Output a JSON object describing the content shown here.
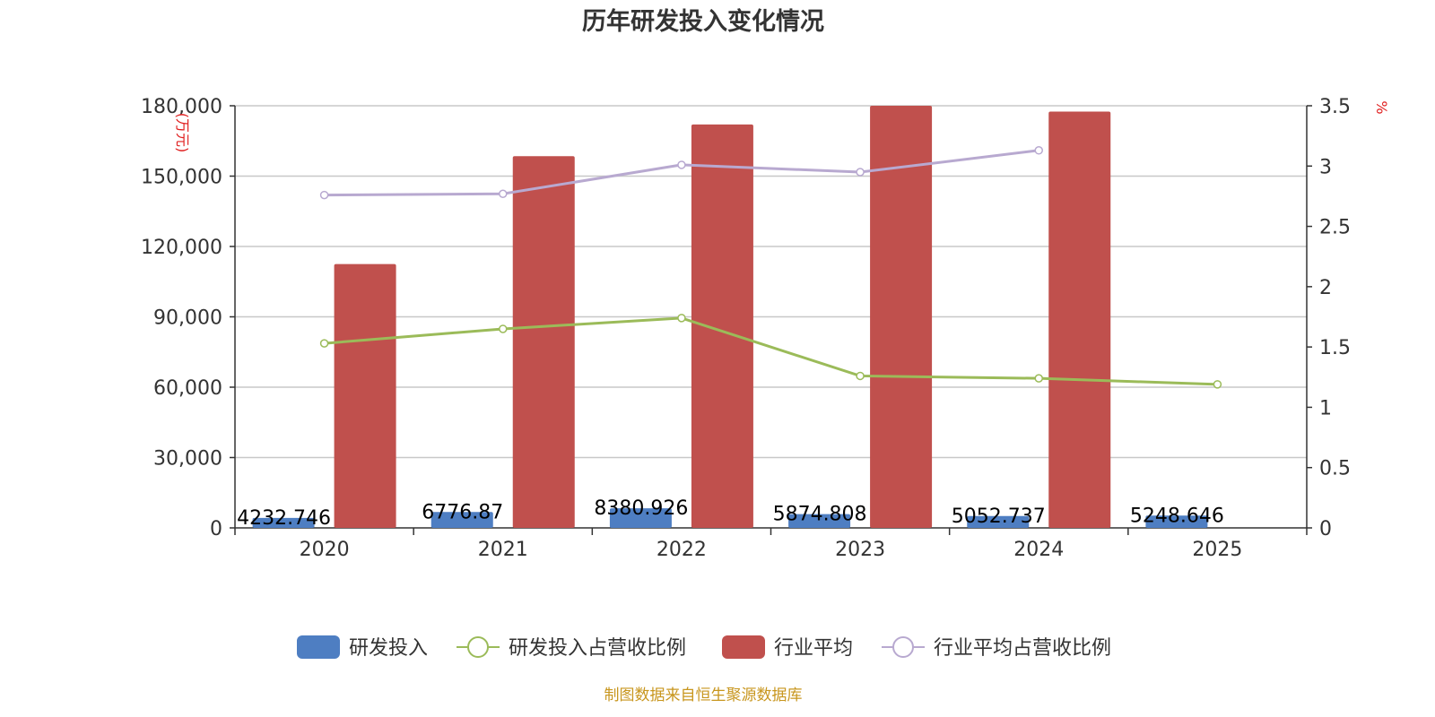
{
  "chart_data": {
    "type": "bar",
    "title": "历年研发投入变化情况",
    "categories": [
      "2020",
      "2021",
      "2022",
      "2023",
      "2024",
      "2025"
    ],
    "y_left": {
      "unit": "(万元)",
      "ticks": [
        "0",
        "30,000",
        "60,000",
        "90,000",
        "120,000",
        "150,000",
        "180,000"
      ],
      "ylim": [
        0,
        180000
      ]
    },
    "y_right": {
      "unit": "%",
      "ticks": [
        "0",
        "0.5",
        "1",
        "1.5",
        "2",
        "2.5",
        "3",
        "3.5"
      ],
      "ylim": [
        0,
        3.5
      ]
    },
    "series": [
      {
        "name": "研发投入",
        "type": "bar",
        "axis": "left",
        "color": "#4e7ec2",
        "values": [
          4232.746,
          6776.87,
          8380.926,
          5874.808,
          5052.737,
          5248.646
        ],
        "labels": [
          "4232.746",
          "6776.87",
          "8380.926",
          "5874.808",
          "5052.737",
          "5248.646"
        ]
      },
      {
        "name": "研发投入占营收比例",
        "type": "line",
        "axis": "right",
        "color": "#9bbb59",
        "values": [
          1.53,
          1.65,
          1.74,
          1.26,
          1.24,
          1.19
        ]
      },
      {
        "name": "行业平均",
        "type": "bar",
        "axis": "left",
        "color": "#c0504d",
        "values": [
          112500,
          158500,
          172000,
          180000,
          177500,
          null
        ]
      },
      {
        "name": "行业平均占营收比例",
        "type": "line",
        "axis": "right",
        "color": "#b8a9d0",
        "values": [
          2.76,
          2.77,
          3.01,
          2.95,
          3.13,
          null
        ]
      }
    ],
    "grid": true,
    "legend_position": "bottom"
  },
  "source": "制图数据来自恒生聚源数据库"
}
